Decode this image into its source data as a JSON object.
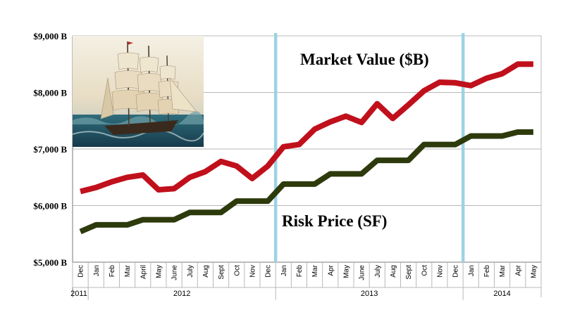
{
  "chart_data": {
    "type": "line",
    "categories": [
      "Dec",
      "Jan",
      "Feb",
      "Mar",
      "April",
      "May",
      "June",
      "July",
      "Aug",
      "Sept",
      "Oct",
      "Nov",
      "Dec",
      "Jan",
      "Feb",
      "Mar",
      "Apr",
      "May",
      "June",
      "July",
      "Aug",
      "Sept",
      "Oct",
      "Nov",
      "Dec",
      "Jan",
      "Feb",
      "Mar",
      "Apr",
      "May"
    ],
    "year_labels": [
      {
        "label": "2011",
        "start": 0,
        "end": 0
      },
      {
        "label": "2012",
        "start": 1,
        "end": 12
      },
      {
        "label": "2013",
        "start": 13,
        "end": 24
      },
      {
        "label": "2014",
        "start": 25,
        "end": 29
      }
    ],
    "y_ticks": [
      {
        "value": 5000,
        "label": "$5,000 B"
      },
      {
        "value": 6000,
        "label": "$6,000 B"
      },
      {
        "value": 7000,
        "label": "$7,000 B"
      },
      {
        "value": 8000,
        "label": "$8,000 B"
      },
      {
        "value": 9000,
        "label": "$9,000 B"
      }
    ],
    "ylim": [
      5000,
      9000
    ],
    "grid": "horizontal",
    "series": [
      {
        "name": "Market Value ($B)",
        "color": "#c0101c",
        "values": [
          6250,
          6320,
          6420,
          6500,
          6540,
          6280,
          6300,
          6500,
          6600,
          6780,
          6700,
          6480,
          6700,
          7040,
          7080,
          7350,
          7480,
          7580,
          7470,
          7800,
          7540,
          7780,
          8030,
          8180,
          8170,
          8120,
          8250,
          8330,
          8500,
          8500
        ]
      },
      {
        "name": "Risk Price (SF)",
        "color": "#2d3a0c",
        "values": [
          5540,
          5660,
          5660,
          5660,
          5750,
          5750,
          5750,
          5880,
          5880,
          5880,
          6080,
          6080,
          6080,
          6380,
          6380,
          6380,
          6560,
          6560,
          6560,
          6800,
          6800,
          6800,
          7080,
          7080,
          7080,
          7230,
          7230,
          7230,
          7300,
          7300
        ]
      }
    ],
    "markers": [
      {
        "between": [
          12,
          13
        ],
        "color": "#9dd3e3"
      },
      {
        "between": [
          24,
          25
        ],
        "color": "#9dd3e3"
      }
    ],
    "annotations": [
      {
        "text": "Market Value ($B)"
      },
      {
        "text": "Risk Price (SF)"
      }
    ]
  },
  "image": {
    "description_icon": "sailing-ship-painting"
  }
}
